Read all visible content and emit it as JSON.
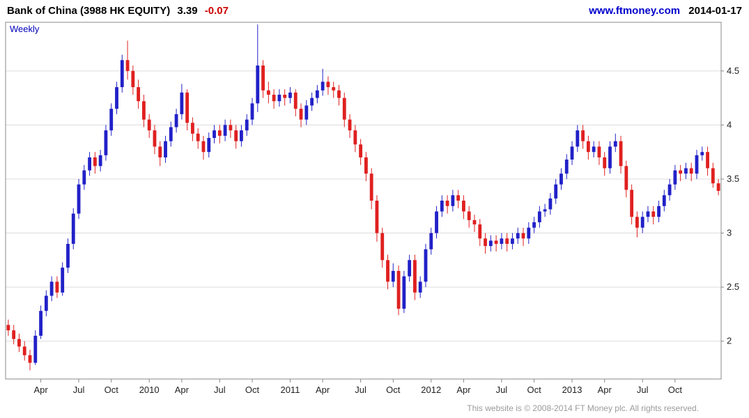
{
  "header": {
    "title": "Bank of China (3988 HK EQUITY)",
    "price": "3.39",
    "change": "-0.07",
    "site_link": "www.ftmoney.com",
    "date": "2014-01-17"
  },
  "chart": {
    "frequency_label": "Weekly"
  },
  "footer": {
    "copyright": "This website is © 2008-2014 FT Money plc. All rights reserved."
  },
  "colors": {
    "up_candle": "#2121c8",
    "down_candle": "#e02020",
    "grid": "#dcdcdc",
    "border": "#888888",
    "axis_text": "#222222",
    "link_blue": "#0000cc",
    "change_red": "#cc0000",
    "frequency_blue": "#0000bb",
    "footer_gray": "#9a9a9a"
  },
  "chart_data": {
    "type": "candlestick",
    "title": "Bank of China (3988 HK EQUITY)",
    "frequency": "Weekly",
    "last_price": 3.39,
    "last_change": -0.07,
    "ylim": [
      1.65,
      4.95
    ],
    "y_ticks": [
      2,
      2.5,
      3,
      3.5,
      4,
      4.5
    ],
    "x_tick_labels": [
      "Apr",
      "Jul",
      "Oct",
      "2010",
      "Apr",
      "Jul",
      "Oct",
      "2011",
      "Apr",
      "Jul",
      "Oct",
      "2012",
      "Apr",
      "Jul",
      "Oct",
      "2013",
      "Apr",
      "Jul",
      "Oct"
    ],
    "x_tick_indices": [
      6,
      13,
      19,
      26,
      32,
      39,
      45,
      52,
      58,
      65,
      71,
      78,
      84,
      91,
      97,
      104,
      110,
      117,
      123
    ],
    "grid": "horizontal-only",
    "legend": "none",
    "y_axis_side": "right",
    "note": "OHLC values estimated from chart pixels; span approx Jan 2009 - Jan 2014, weekly candles approximated at ~biweekly sampling",
    "ohlc": [
      [
        2.15,
        2.2,
        2.05,
        2.1
      ],
      [
        2.1,
        2.15,
        1.97,
        2.02
      ],
      [
        2.02,
        2.07,
        1.9,
        1.95
      ],
      [
        1.95,
        2.0,
        1.82,
        1.87
      ],
      [
        1.87,
        1.92,
        1.73,
        1.8
      ],
      [
        1.8,
        2.1,
        1.78,
        2.05
      ],
      [
        2.05,
        2.33,
        2.02,
        2.28
      ],
      [
        2.28,
        2.47,
        2.23,
        2.42
      ],
      [
        2.42,
        2.6,
        2.37,
        2.55
      ],
      [
        2.55,
        2.6,
        2.4,
        2.45
      ],
      [
        2.45,
        2.73,
        2.42,
        2.68
      ],
      [
        2.68,
        2.95,
        2.63,
        2.9
      ],
      [
        2.9,
        3.23,
        2.85,
        3.18
      ],
      [
        3.18,
        3.5,
        3.13,
        3.45
      ],
      [
        3.45,
        3.63,
        3.4,
        3.58
      ],
      [
        3.58,
        3.75,
        3.53,
        3.7
      ],
      [
        3.7,
        3.75,
        3.55,
        3.62
      ],
      [
        3.62,
        3.77,
        3.57,
        3.72
      ],
      [
        3.72,
        4.0,
        3.67,
        3.95
      ],
      [
        3.95,
        4.2,
        3.9,
        4.15
      ],
      [
        4.15,
        4.4,
        4.1,
        4.35
      ],
      [
        4.35,
        4.65,
        4.3,
        4.6
      ],
      [
        4.6,
        4.78,
        4.42,
        4.5
      ],
      [
        4.5,
        4.55,
        4.28,
        4.35
      ],
      [
        4.35,
        4.42,
        4.15,
        4.22
      ],
      [
        4.22,
        4.28,
        3.98,
        4.05
      ],
      [
        4.05,
        4.1,
        3.88,
        3.95
      ],
      [
        3.95,
        4.0,
        3.73,
        3.8
      ],
      [
        3.8,
        3.85,
        3.62,
        3.7
      ],
      [
        3.7,
        3.9,
        3.65,
        3.85
      ],
      [
        3.85,
        4.03,
        3.8,
        3.98
      ],
      [
        3.98,
        4.15,
        3.93,
        4.1
      ],
      [
        4.1,
        4.38,
        4.05,
        4.3
      ],
      [
        4.3,
        4.33,
        3.95,
        4.02
      ],
      [
        4.02,
        4.07,
        3.85,
        3.92
      ],
      [
        3.92,
        3.97,
        3.78,
        3.85
      ],
      [
        3.85,
        3.9,
        3.68,
        3.75
      ],
      [
        3.75,
        3.93,
        3.7,
        3.88
      ],
      [
        3.88,
        4.0,
        3.83,
        3.95
      ],
      [
        3.95,
        4.0,
        3.83,
        3.9
      ],
      [
        3.9,
        4.05,
        3.85,
        4.0
      ],
      [
        4.0,
        4.05,
        3.88,
        3.95
      ],
      [
        3.95,
        4.0,
        3.78,
        3.85
      ],
      [
        3.85,
        4.0,
        3.8,
        3.95
      ],
      [
        3.95,
        4.1,
        3.9,
        4.05
      ],
      [
        4.05,
        4.25,
        4.0,
        4.2
      ],
      [
        4.2,
        4.93,
        4.12,
        4.55
      ],
      [
        4.55,
        4.6,
        4.25,
        4.32
      ],
      [
        4.32,
        4.4,
        4.2,
        4.28
      ],
      [
        4.28,
        4.33,
        4.15,
        4.22
      ],
      [
        4.22,
        4.33,
        4.17,
        4.28
      ],
      [
        4.28,
        4.33,
        4.18,
        4.25
      ],
      [
        4.25,
        4.35,
        4.2,
        4.3
      ],
      [
        4.3,
        4.33,
        4.08,
        4.15
      ],
      [
        4.15,
        4.2,
        3.98,
        4.05
      ],
      [
        4.05,
        4.23,
        4.0,
        4.18
      ],
      [
        4.18,
        4.3,
        4.13,
        4.25
      ],
      [
        4.25,
        4.37,
        4.2,
        4.32
      ],
      [
        4.32,
        4.52,
        4.27,
        4.4
      ],
      [
        4.4,
        4.45,
        4.28,
        4.35
      ],
      [
        4.35,
        4.4,
        4.25,
        4.32
      ],
      [
        4.32,
        4.37,
        4.18,
        4.25
      ],
      [
        4.25,
        4.3,
        3.98,
        4.05
      ],
      [
        4.05,
        4.1,
        3.88,
        3.95
      ],
      [
        3.95,
        4.0,
        3.75,
        3.82
      ],
      [
        3.82,
        3.87,
        3.63,
        3.7
      ],
      [
        3.7,
        3.75,
        3.48,
        3.55
      ],
      [
        3.55,
        3.6,
        3.22,
        3.3
      ],
      [
        3.3,
        3.35,
        2.92,
        3.0
      ],
      [
        3.0,
        3.05,
        2.68,
        2.75
      ],
      [
        2.75,
        2.8,
        2.48,
        2.55
      ],
      [
        2.55,
        2.72,
        2.5,
        2.65
      ],
      [
        2.65,
        2.7,
        2.24,
        2.3
      ],
      [
        2.3,
        2.65,
        2.26,
        2.6
      ],
      [
        2.6,
        2.8,
        2.55,
        2.75
      ],
      [
        2.75,
        2.8,
        2.38,
        2.45
      ],
      [
        2.45,
        2.6,
        2.4,
        2.55
      ],
      [
        2.55,
        2.9,
        2.5,
        2.85
      ],
      [
        2.85,
        3.05,
        2.8,
        3.0
      ],
      [
        3.0,
        3.25,
        2.95,
        3.2
      ],
      [
        3.2,
        3.35,
        3.15,
        3.3
      ],
      [
        3.3,
        3.35,
        3.18,
        3.25
      ],
      [
        3.25,
        3.4,
        3.2,
        3.35
      ],
      [
        3.35,
        3.4,
        3.23,
        3.3
      ],
      [
        3.3,
        3.35,
        3.13,
        3.2
      ],
      [
        3.2,
        3.25,
        3.05,
        3.12
      ],
      [
        3.12,
        3.17,
        3.01,
        3.08
      ],
      [
        3.08,
        3.13,
        2.88,
        2.95
      ],
      [
        2.95,
        3.0,
        2.81,
        2.88
      ],
      [
        2.88,
        2.98,
        2.83,
        2.93
      ],
      [
        2.93,
        2.98,
        2.83,
        2.9
      ],
      [
        2.9,
        3.0,
        2.85,
        2.95
      ],
      [
        2.95,
        3.0,
        2.83,
        2.9
      ],
      [
        2.9,
        3.0,
        2.85,
        2.95
      ],
      [
        2.95,
        3.05,
        2.9,
        3.0
      ],
      [
        3.0,
        3.05,
        2.88,
        2.95
      ],
      [
        2.95,
        3.1,
        2.9,
        3.05
      ],
      [
        3.05,
        3.15,
        3.0,
        3.1
      ],
      [
        3.1,
        3.25,
        3.05,
        3.2
      ],
      [
        3.2,
        3.27,
        3.15,
        3.22
      ],
      [
        3.22,
        3.37,
        3.17,
        3.32
      ],
      [
        3.32,
        3.5,
        3.27,
        3.45
      ],
      [
        3.45,
        3.6,
        3.4,
        3.55
      ],
      [
        3.55,
        3.73,
        3.5,
        3.68
      ],
      [
        3.68,
        3.85,
        3.63,
        3.8
      ],
      [
        3.8,
        4.0,
        3.75,
        3.95
      ],
      [
        3.95,
        4.0,
        3.78,
        3.85
      ],
      [
        3.85,
        3.9,
        3.68,
        3.75
      ],
      [
        3.75,
        3.85,
        3.7,
        3.8
      ],
      [
        3.8,
        3.85,
        3.63,
        3.7
      ],
      [
        3.7,
        3.75,
        3.53,
        3.6
      ],
      [
        3.6,
        3.85,
        3.55,
        3.8
      ],
      [
        3.8,
        3.92,
        3.75,
        3.85
      ],
      [
        3.85,
        3.9,
        3.55,
        3.62
      ],
      [
        3.62,
        3.67,
        3.33,
        3.4
      ],
      [
        3.4,
        3.45,
        3.08,
        3.15
      ],
      [
        3.15,
        3.2,
        2.96,
        3.05
      ],
      [
        3.05,
        3.2,
        3.0,
        3.15
      ],
      [
        3.15,
        3.25,
        3.1,
        3.2
      ],
      [
        3.2,
        3.25,
        3.08,
        3.15
      ],
      [
        3.15,
        3.3,
        3.1,
        3.25
      ],
      [
        3.25,
        3.4,
        3.2,
        3.35
      ],
      [
        3.35,
        3.5,
        3.3,
        3.45
      ],
      [
        3.45,
        3.63,
        3.4,
        3.58
      ],
      [
        3.58,
        3.63,
        3.48,
        3.55
      ],
      [
        3.55,
        3.65,
        3.5,
        3.6
      ],
      [
        3.6,
        3.65,
        3.48,
        3.55
      ],
      [
        3.55,
        3.77,
        3.5,
        3.72
      ],
      [
        3.72,
        3.8,
        3.67,
        3.75
      ],
      [
        3.75,
        3.8,
        3.53,
        3.6
      ],
      [
        3.6,
        3.65,
        3.42,
        3.46
      ],
      [
        3.46,
        3.5,
        3.35,
        3.39
      ]
    ]
  }
}
